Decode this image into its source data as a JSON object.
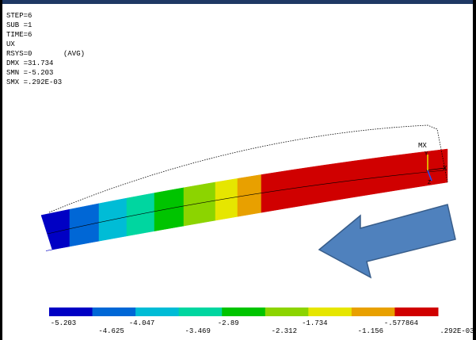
{
  "info": {
    "lines": [
      "STEP=6",
      "SUB =1",
      "TIME=6",
      "UX",
      "RSYS=0",
      "DMX =31.734",
      "SMN =-5.203",
      "SMX =.292E-03"
    ],
    "avg": "(AVG)"
  },
  "triad": {
    "max_label": "MX",
    "x_label": "X",
    "y_label": "Y",
    "z_label": "Z"
  },
  "legend": {
    "colors": [
      "#0000c4",
      "#0067d6",
      "#00bcd6",
      "#00d6a0",
      "#00c400",
      "#8cd400",
      "#e6e600",
      "#e8a000",
      "#d00000"
    ],
    "labels": [
      "-5.203",
      "-4.625",
      "-4.047",
      "-3.469",
      "-2.89",
      "-2.312",
      "-1.734",
      "-1.156",
      "-.577864",
      ".292E-03"
    ]
  }
}
